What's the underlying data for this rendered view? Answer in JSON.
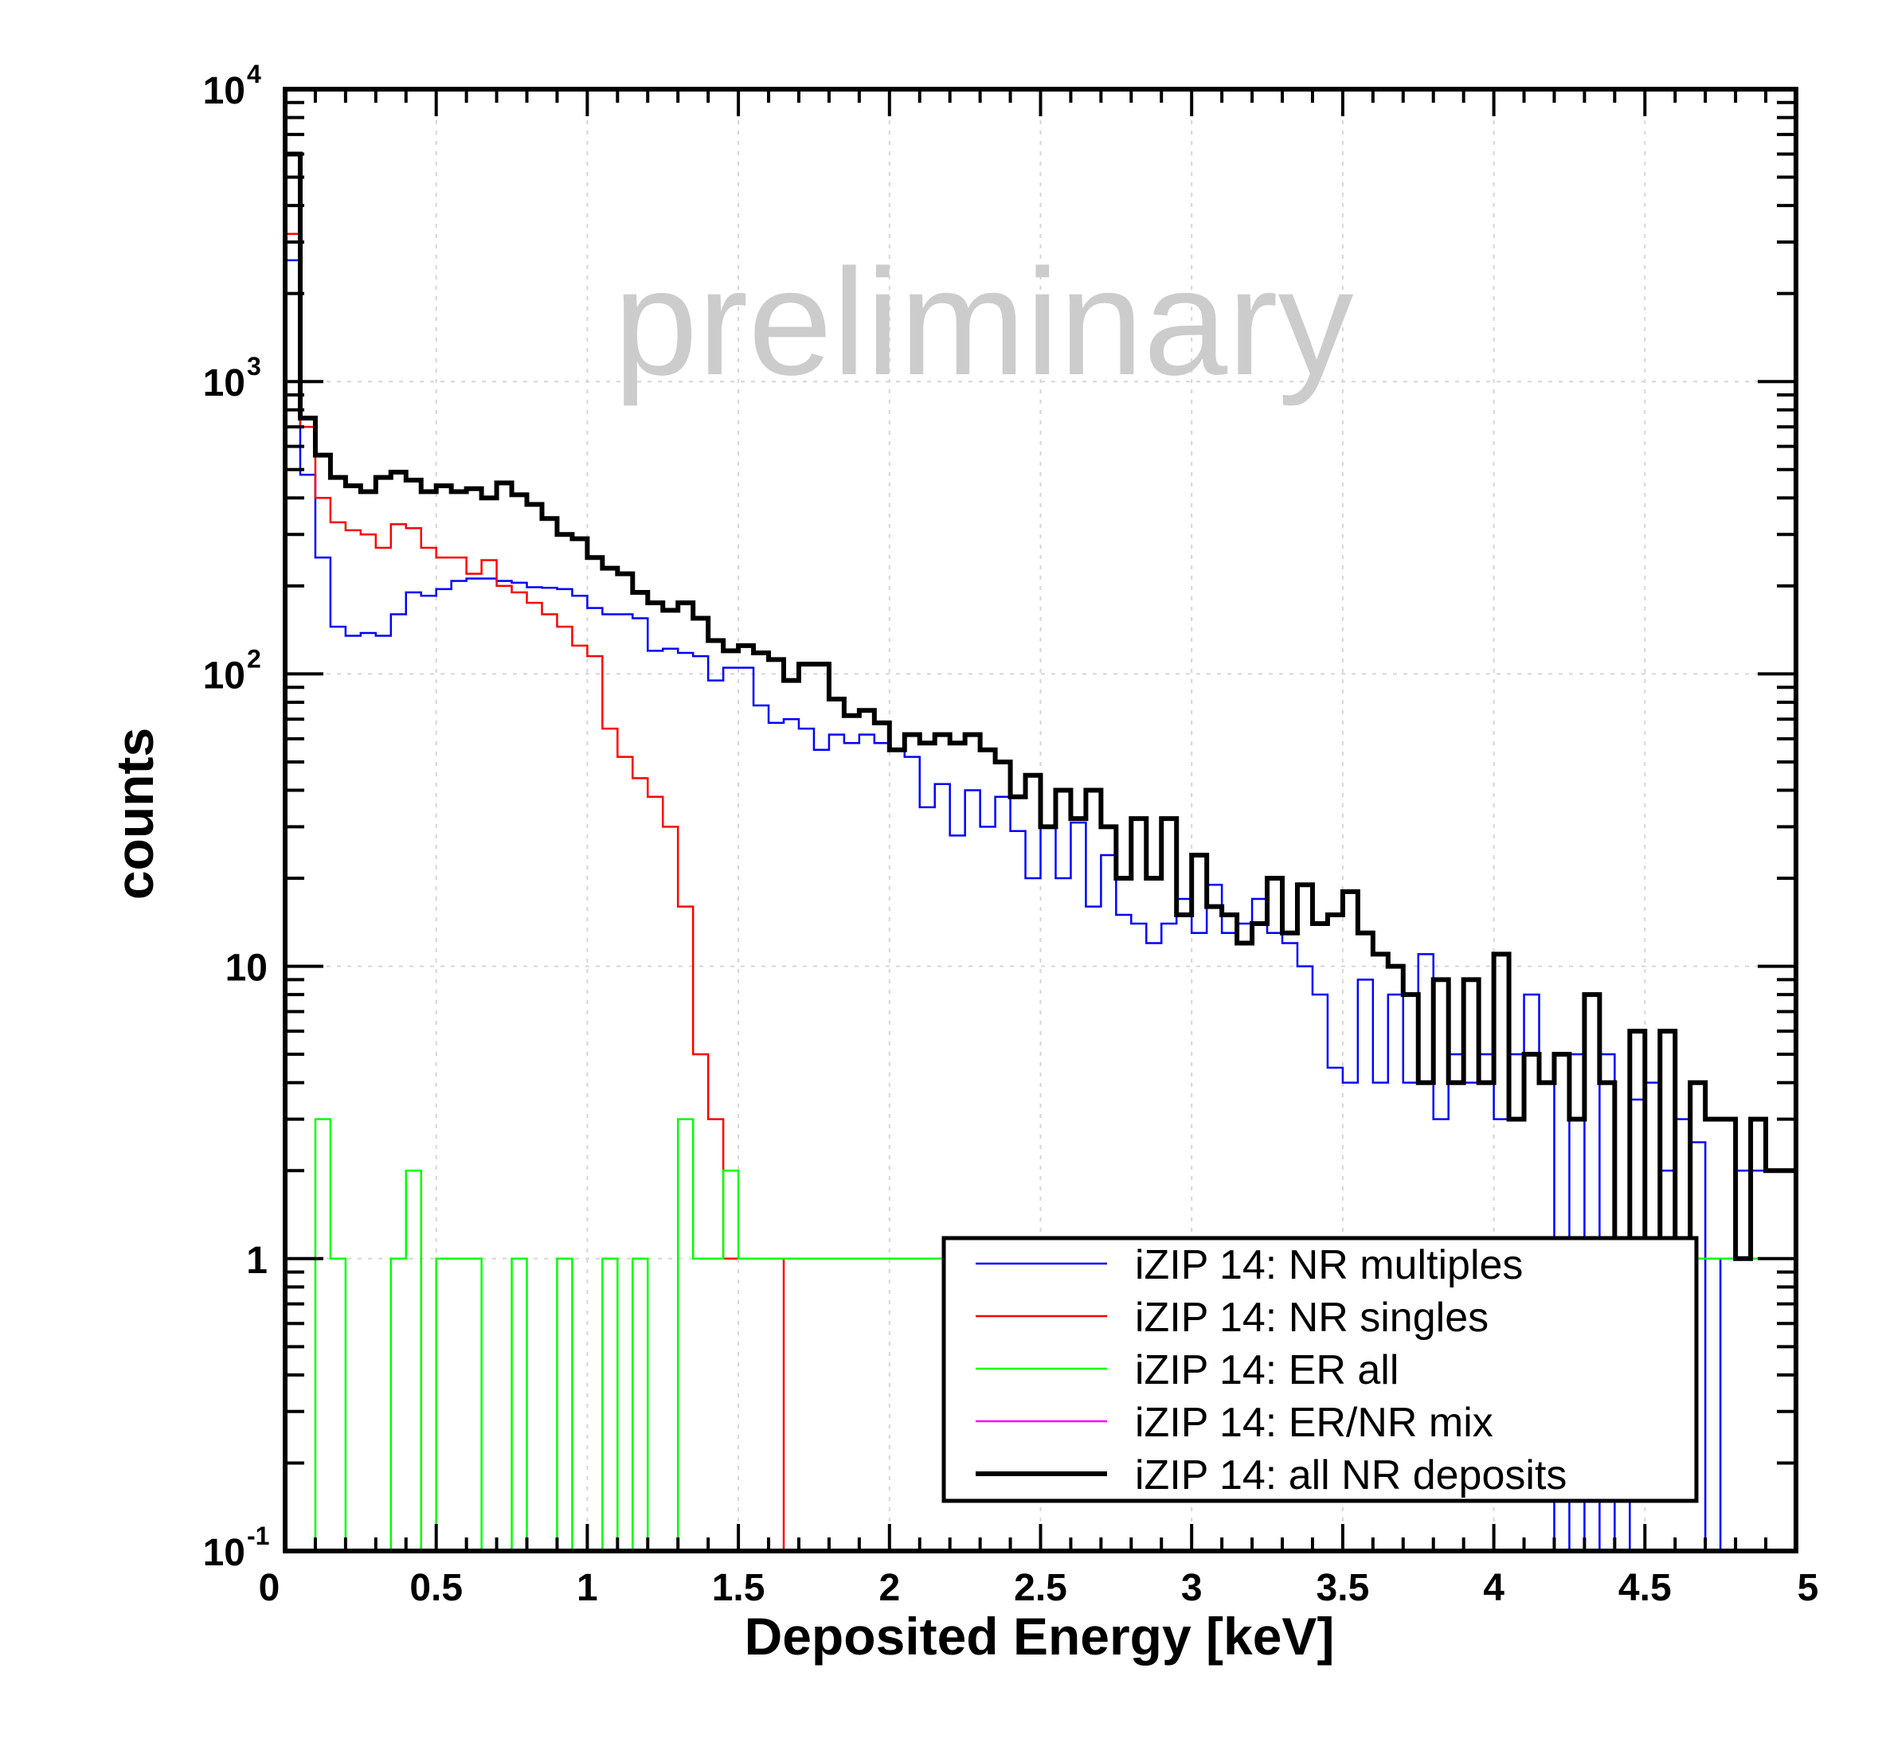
{
  "chart_data": {
    "type": "histogram",
    "xlabel": "Deposited Energy [keV]",
    "ylabel": "counts",
    "watermark": "preliminary",
    "xlim": [
      0,
      5
    ],
    "ylim": [
      0.1,
      10000
    ],
    "y_scale": "log",
    "grid": true,
    "legend_position": "bottom-right",
    "x_ticks": [
      {
        "value": 0,
        "label": "0"
      },
      {
        "value": 0.5,
        "label": "0.5"
      },
      {
        "value": 1,
        "label": "1"
      },
      {
        "value": 1.5,
        "label": "1.5"
      },
      {
        "value": 2,
        "label": "2"
      },
      {
        "value": 2.5,
        "label": "2.5"
      },
      {
        "value": 3,
        "label": "3"
      },
      {
        "value": 3.5,
        "label": "3.5"
      },
      {
        "value": 4,
        "label": "4"
      },
      {
        "value": 4.5,
        "label": "4.5"
      },
      {
        "value": 5,
        "label": "5"
      }
    ],
    "y_ticks": [
      {
        "value": 0.1,
        "base": "10",
        "exp": "-1"
      },
      {
        "value": 1,
        "base": "1",
        "exp": ""
      },
      {
        "value": 10,
        "base": "10",
        "exp": ""
      },
      {
        "value": 100,
        "base": "10",
        "exp": "2"
      },
      {
        "value": 1000,
        "base": "10",
        "exp": "3"
      },
      {
        "value": 10000,
        "base": "10",
        "exp": "4"
      }
    ],
    "bin_width": 0.05,
    "series": [
      {
        "name": "iZIP 14: NR multiples",
        "color": "#0000ff",
        "width": "thin",
        "values": [
          2600,
          480,
          250,
          145,
          135,
          138,
          135,
          160,
          190,
          185,
          195,
          208,
          212,
          212,
          208,
          205,
          198,
          197,
          195,
          185,
          168,
          160,
          160,
          155,
          120,
          122,
          118,
          115,
          95,
          105,
          105,
          78,
          68,
          70,
          65,
          55,
          62,
          58,
          62,
          58,
          55,
          52,
          35,
          42,
          28,
          40,
          30,
          38,
          29,
          20,
          30,
          20,
          31,
          16,
          24,
          15,
          14,
          12,
          14,
          17,
          13,
          19,
          13,
          14,
          17,
          13,
          12,
          10,
          8,
          4.5,
          4,
          9,
          4,
          8,
          4,
          11,
          3,
          5,
          4,
          5,
          3,
          5,
          8,
          4,
          0.1,
          5,
          0.1,
          5,
          0.1,
          3.5,
          4,
          2,
          3,
          2.5,
          0.1,
          1,
          2,
          2,
          2,
          2
        ]
      },
      {
        "name": "iZIP 14: NR singles",
        "color": "#ff0000",
        "width": "thin",
        "values": [
          3200,
          700,
          400,
          330,
          310,
          300,
          270,
          325,
          315,
          270,
          250,
          250,
          220,
          245,
          200,
          190,
          175,
          160,
          145,
          125,
          115,
          65,
          52,
          44,
          38,
          30,
          16,
          5,
          3,
          1,
          1,
          1,
          1,
          0.1,
          0.1,
          0.1,
          0.1,
          0.1,
          0.1,
          0.1,
          0.1,
          0.1,
          0.1,
          0.1,
          0.1,
          0.1,
          0.1,
          0.1,
          0.1,
          0.1,
          0.1,
          0.1,
          0.1,
          0.1,
          0.1,
          0.1,
          0.1,
          0.1,
          0.1,
          0.1,
          0.1,
          0.1,
          0.1,
          0.1,
          0.1,
          0.1,
          0.1,
          0.1,
          0.1,
          0.1,
          0.1,
          0.1,
          0.1,
          0.1,
          0.1,
          0.1,
          0.1,
          0.1,
          0.1,
          0.1,
          0.1,
          0.1,
          0.1,
          0.1,
          0.1,
          0.1,
          0.1,
          0.1,
          0.1,
          0.1,
          0.1,
          0.1,
          0.1,
          0.1,
          0.1,
          0.1,
          0.1,
          0.1,
          0.1,
          0.1
        ]
      },
      {
        "name": "iZIP 14: ER all",
        "color": "#00ff00",
        "width": "thin",
        "values": [
          0.1,
          0.1,
          3,
          1,
          0.1,
          0.1,
          0.1,
          1,
          2,
          0.1,
          1,
          1,
          1,
          0.1,
          0.1,
          1,
          0.1,
          0.1,
          1,
          0.1,
          0.1,
          1,
          0.1,
          1,
          0.1,
          0.1,
          3,
          1,
          1,
          2,
          1,
          1,
          1,
          1,
          1,
          1,
          1,
          1,
          1,
          1,
          1,
          1,
          1,
          1,
          1,
          1,
          1,
          1,
          1,
          1,
          1,
          1,
          1,
          1,
          1,
          1,
          1,
          1,
          1,
          1,
          1,
          1,
          1,
          1,
          1,
          1,
          1,
          1,
          1,
          1,
          1,
          1,
          1,
          1,
          1,
          1,
          1,
          1,
          1,
          1,
          1,
          1,
          1,
          1,
          1,
          1,
          1,
          1,
          1,
          1,
          1,
          1,
          1,
          1,
          1,
          1,
          1,
          1,
          1,
          1
        ]
      },
      {
        "name": "iZIP 14: ER/NR mix",
        "color": "#ff00ff",
        "width": "thin",
        "values": [
          0.1,
          0.1,
          0.1,
          0.1,
          0.1,
          0.1,
          0.1,
          0.1,
          0.1,
          0.1,
          0.1,
          0.1,
          0.1,
          0.1,
          0.1,
          0.1,
          0.1,
          0.1,
          0.1,
          0.1,
          0.1,
          0.1,
          0.1,
          0.1,
          0.1,
          0.1,
          0.1,
          0.1,
          0.1,
          0.1,
          0.1,
          0.1,
          0.1,
          0.1,
          0.1,
          0.1,
          0.1,
          0.1,
          0.1,
          0.1,
          0.1,
          0.1,
          0.1,
          0.1,
          0.1,
          0.1,
          0.1,
          0.1,
          0.1,
          0.1,
          0.1,
          0.1,
          0.1,
          0.1,
          0.1,
          0.1,
          0.1,
          0.1,
          0.1,
          0.1,
          0.1,
          0.1,
          0.1,
          0.1,
          0.1,
          0.1,
          0.1,
          0.1,
          0.1,
          0.1,
          0.1,
          0.1,
          0.1,
          0.1,
          0.1,
          0.1,
          0.1,
          0.1,
          0.1,
          0.1,
          0.1,
          0.1,
          0.1,
          0.1,
          0.1,
          0.1,
          0.1,
          0.1,
          0.1,
          0.1,
          0.1,
          0.1,
          0.1,
          0.1,
          0.1,
          0.1,
          0.1,
          0.1,
          0.1,
          0.1
        ]
      },
      {
        "name": "iZIP 14: all NR deposits",
        "color": "#000000",
        "width": "thick",
        "values": [
          6000,
          750,
          560,
          470,
          440,
          420,
          470,
          490,
          460,
          420,
          440,
          420,
          430,
          400,
          450,
          410,
          380,
          340,
          300,
          290,
          250,
          230,
          220,
          190,
          175,
          165,
          175,
          155,
          130,
          120,
          125,
          118,
          112,
          95,
          108,
          108,
          82,
          72,
          75,
          68,
          55,
          62,
          58,
          62,
          58,
          62,
          55,
          50,
          38,
          45,
          30,
          40,
          32,
          40,
          30,
          20,
          32,
          20,
          32,
          15,
          24,
          16,
          15,
          12,
          14,
          20,
          13,
          19,
          14,
          15,
          18,
          13,
          11,
          10,
          8,
          4,
          9,
          4,
          9,
          4,
          11,
          3,
          5,
          4,
          5,
          3,
          8,
          4,
          1,
          6,
          1,
          6,
          1,
          4,
          3,
          3,
          1,
          3,
          2,
          2
        ]
      }
    ],
    "overrides_note": ""
  }
}
